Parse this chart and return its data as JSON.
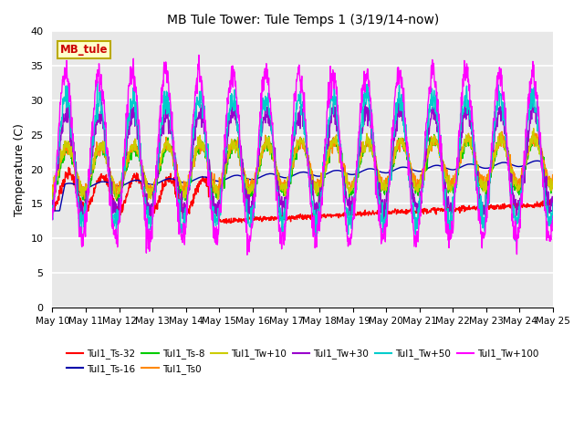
{
  "title": "MB Tule Tower: Tule Temps 1 (3/19/14-now)",
  "ylabel": "Temperature (C)",
  "ylim": [
    0,
    40
  ],
  "yticks": [
    0,
    5,
    10,
    15,
    20,
    25,
    30,
    35,
    40
  ],
  "x_labels": [
    "May 10",
    "May 11",
    "May 12",
    "May 13",
    "May 14",
    "May 15",
    "May 16",
    "May 17",
    "May 18",
    "May 19",
    "May 20",
    "May 21",
    "May 22",
    "May 23",
    "May 24",
    "May 25"
  ],
  "legend_box_label": "MB_tule",
  "legend_box_color": "#ffffcc",
  "legend_box_border": "#bbaa00",
  "legend_box_text": "#cc0000",
  "series": [
    {
      "label": "Tul1_Ts-32",
      "color": "#ff0000",
      "lw": 1.0
    },
    {
      "label": "Tul1_Ts-16",
      "color": "#0000aa",
      "lw": 1.0
    },
    {
      "label": "Tul1_Ts-8",
      "color": "#00cc00",
      "lw": 1.0
    },
    {
      "label": "Tul1_Ts0",
      "color": "#ff8800",
      "lw": 1.0
    },
    {
      "label": "Tul1_Tw+10",
      "color": "#cccc00",
      "lw": 1.0
    },
    {
      "label": "Tul1_Tw+30",
      "color": "#9900cc",
      "lw": 1.0
    },
    {
      "label": "Tul1_Tw+50",
      "color": "#00cccc",
      "lw": 1.0
    },
    {
      "label": "Tul1_Tw+100",
      "color": "#ff00ff",
      "lw": 1.0
    }
  ],
  "background_color": "#e8e8e8",
  "grid_color": "#ffffff",
  "figsize": [
    6.4,
    4.8
  ],
  "dpi": 100
}
